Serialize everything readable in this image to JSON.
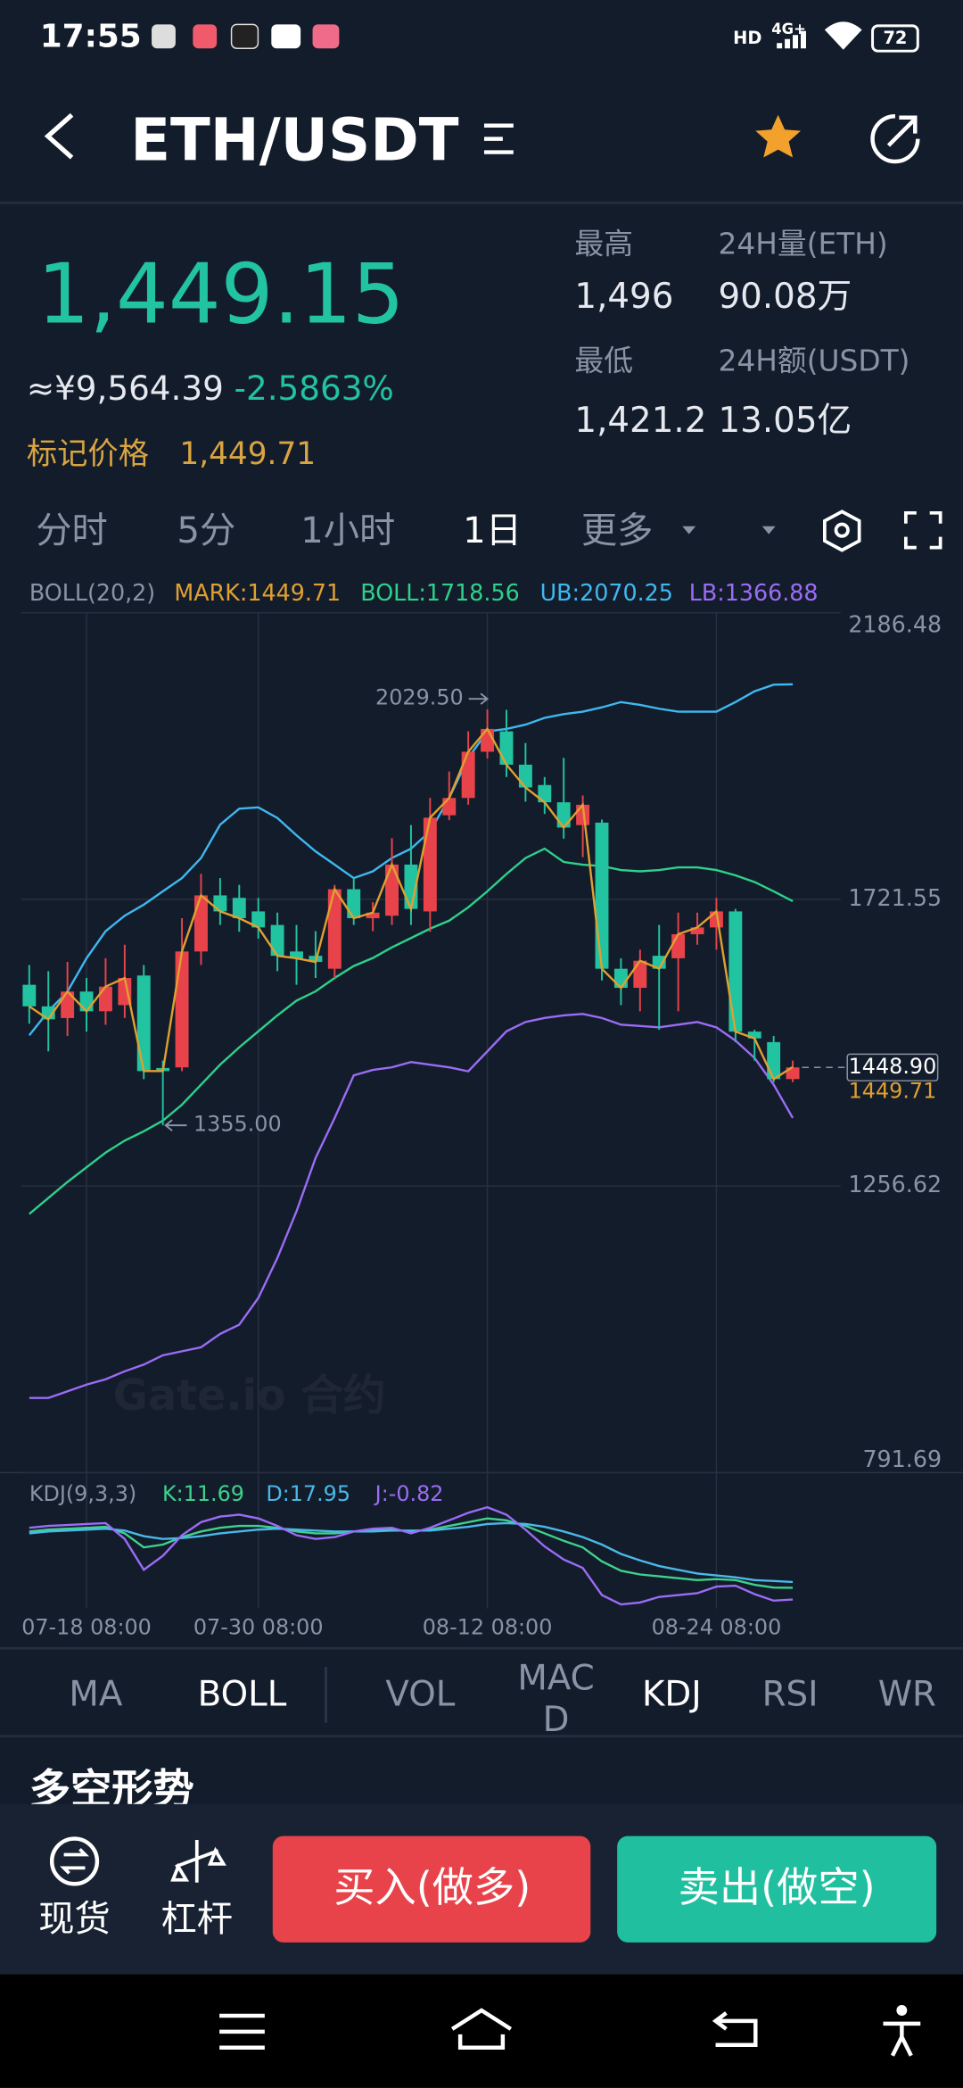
{
  "status_bar": {
    "time": "17:55",
    "hd": "HD",
    "network": "4G+",
    "battery": "72"
  },
  "header": {
    "pair": "ETH/USDT"
  },
  "ticker": {
    "last_price": "1,449.15",
    "cny_price": "≈¥9,564.39",
    "change": "-2.5863%",
    "mark_price_label": "标记价格",
    "mark_price": "1,449.71",
    "stats": [
      {
        "label": "最高",
        "value": "1,496"
      },
      {
        "label": "24H量(ETH)",
        "value": "90.08万"
      },
      {
        "label": "最低",
        "value": "1,421.2"
      },
      {
        "label": "24H额(USDT)",
        "value": "13.05亿"
      }
    ]
  },
  "interval_tabs": [
    "分时",
    "5分",
    "1小时",
    "1日",
    "更多"
  ],
  "chart_data": [
    {
      "type": "candlestick",
      "legend_title": "BOLL(20,2)",
      "categories": [
        null,
        null,
        null,
        "07-18 08:00",
        null,
        null,
        null,
        null,
        null,
        null,
        null,
        null,
        "07-30 08:00",
        null,
        null,
        null,
        null,
        null,
        null,
        null,
        null,
        null,
        null,
        null,
        "08-12 08:00",
        null,
        null,
        null,
        null,
        null,
        null,
        null,
        null,
        null,
        null,
        null,
        "08-24 08:00",
        null,
        null,
        null,
        null
      ],
      "open": [
        1583,
        1548,
        1529,
        1572,
        1540,
        1550,
        1598,
        1448,
        1449,
        1637,
        1728,
        1724,
        1702,
        1680,
        1637,
        1630,
        1609,
        1738,
        1691,
        1695,
        1778,
        1702,
        1858,
        1886,
        1961,
        1994,
        1940,
        1907,
        1879,
        1842,
        1846,
        1609,
        1578,
        1630,
        1626,
        1665,
        1676,
        1702,
        1507,
        1490,
        1430
      ],
      "high": [
        1615,
        1605,
        1620,
        1594,
        1626,
        1648,
        1615,
        1460,
        1691,
        1763,
        1756,
        1745,
        1724,
        1700,
        1680,
        1670,
        1745,
        1756,
        1717,
        1821,
        1842,
        1886,
        1929,
        1994,
        2029.5,
        2029,
        1975,
        1920,
        1951,
        1890,
        1851,
        1626,
        1640,
        1680,
        1700,
        1700,
        1724,
        1706,
        1510,
        1500,
        1460
      ],
      "low": [
        1520,
        1475,
        1500,
        1507,
        1518,
        1529,
        1430,
        1355,
        1443,
        1615,
        1680,
        1669,
        1658,
        1605,
        1583,
        1594,
        1594,
        1680,
        1670,
        1680,
        1680,
        1669,
        1850,
        1875,
        1950,
        1920,
        1880,
        1860,
        1820,
        1790,
        1590,
        1550,
        1540,
        1510,
        1540,
        1648,
        1640,
        1490,
        1460,
        1425,
        1425
      ],
      "close": [
        1548,
        1527,
        1572,
        1540,
        1580,
        1594,
        1443,
        1443,
        1637,
        1728,
        1702,
        1691,
        1676,
        1630,
        1626,
        1620,
        1738,
        1691,
        1700,
        1778,
        1706,
        1854,
        1886,
        1961,
        1998,
        1940,
        1903,
        1879,
        1838,
        1875,
        1609,
        1578,
        1622,
        1609,
        1665,
        1676,
        1702,
        1507,
        1496,
        1430,
        1448.9
      ],
      "up_color": "#e8434a",
      "down_color": "#22c3a0",
      "series": [
        {
          "name": "MARK:1449.71",
          "color": "#e0a030",
          "values": [
            1548,
            1527,
            1572,
            1540,
            1580,
            1594,
            1443,
            1443,
            1637,
            1728,
            1702,
            1691,
            1676,
            1630,
            1626,
            1620,
            1738,
            1691,
            1700,
            1778,
            1706,
            1854,
            1886,
            1961,
            1998,
            1940,
            1903,
            1879,
            1838,
            1875,
            1609,
            1578,
            1622,
            1609,
            1665,
            1676,
            1702,
            1507,
            1496,
            1430,
            1449.71
          ]
        },
        {
          "name": "BOLL:1718.56",
          "color": "#2ed18a",
          "values": [
            1211.2,
            1237.2,
            1263.1,
            1286.9,
            1310.7,
            1330.2,
            1345.3,
            1362.6,
            1388.5,
            1421,
            1453.4,
            1481.5,
            1507.5,
            1533.4,
            1557.2,
            1572.3,
            1594,
            1613.4,
            1626.4,
            1643.7,
            1658.8,
            1674,
            1687,
            1708.6,
            1734.6,
            1762.7,
            1788.6,
            1803.8,
            1782.2,
            1777.8,
            1775.6,
            1769.1,
            1767,
            1769.1,
            1773.4,
            1773.4,
            1769.1,
            1760.5,
            1749.7,
            1734.6,
            1718.56
          ]
        },
        {
          "name": "UB:2070.25",
          "color": "#3fb8f0",
          "values": [
            1501,
            1540,
            1572,
            1626,
            1670,
            1695,
            1713,
            1734.6,
            1756,
            1788.6,
            1842.7,
            1868.6,
            1870.8,
            1853.5,
            1825.4,
            1799.4,
            1777.8,
            1756,
            1767,
            1788.6,
            1803.8,
            1831.9,
            1886,
            1951,
            1994,
            1998,
            2005,
            2016,
            2022,
            2026,
            2033,
            2041.6,
            2037,
            2030.8,
            2026,
            2026,
            2026,
            2041.6,
            2059,
            2069.7,
            2070.25
          ]
        },
        {
          "name": "LB:1366.88",
          "color": "#9b6cf5",
          "values": [
            912.8,
            912.8,
            923.6,
            934.4,
            943.1,
            956,
            966.9,
            982,
            988.5,
            995,
            1016.6,
            1031.7,
            1075,
            1139.9,
            1215.5,
            1302,
            1366.9,
            1436.1,
            1444.8,
            1449.1,
            1457.7,
            1453.4,
            1449.1,
            1442.6,
            1475,
            1507.5,
            1522.6,
            1529.1,
            1533.4,
            1535.6,
            1529.1,
            1518.3,
            1516.1,
            1514,
            1518.3,
            1522.6,
            1514,
            1492.4,
            1464.3,
            1421,
            1366.88
          ]
        }
      ],
      "ylim": [
        791.69,
        2186.48
      ],
      "yticks": [
        791.69,
        1256.62,
        1721.55,
        2186.48
      ],
      "grid": true,
      "high_label": "2029.50",
      "low_label": "1355.00",
      "last_price": {
        "value": 1448.9,
        "label": "1448.90"
      },
      "mark_price": {
        "value": 1449.71,
        "label": "1449.71"
      }
    },
    {
      "type": "line",
      "title": "KDJ(9,3,3)",
      "series": [
        {
          "name": "K:11.69",
          "color": "#3fd18c",
          "values": [
            72,
            74,
            75,
            76,
            77,
            70,
            55,
            58,
            66,
            72,
            76,
            78,
            78,
            76,
            72,
            70,
            70,
            72,
            73,
            74,
            72,
            74,
            78,
            82,
            86,
            84,
            78,
            70,
            62,
            55,
            40,
            30,
            26,
            24,
            22,
            20,
            21,
            20,
            15,
            12,
            11.69
          ]
        },
        {
          "name": "D:17.95",
          "color": "#4ab8e8",
          "values": [
            70,
            72,
            73,
            74,
            75,
            73,
            67,
            64,
            65,
            67,
            70,
            72,
            74,
            75,
            74,
            73,
            72,
            72,
            72,
            73,
            73,
            73,
            75,
            77,
            80,
            81,
            80,
            77,
            72,
            66,
            58,
            48,
            41,
            35,
            31,
            27,
            25,
            23,
            20,
            19,
            17.95
          ]
        },
        {
          "name": "J:-0.82",
          "color": "#9b6cf5",
          "values": [
            76,
            78,
            79,
            80,
            81,
            64,
            31,
            46,
            68,
            82,
            88,
            90,
            86,
            78,
            68,
            64,
            66,
            72,
            75,
            76,
            70,
            76,
            84,
            92,
            98,
            90,
            74,
            56,
            42,
            33,
            4,
            -6,
            -4,
            2,
            4,
            6,
            13,
            14,
            5,
            -2,
            -0.82
          ]
        }
      ]
    }
  ],
  "indicator_tabs": [
    [
      "MA"
    ],
    [
      "BOLL"
    ],
    [
      "VOL"
    ],
    [
      "MAC",
      "D"
    ],
    [
      "KDJ"
    ],
    [
      "RSI"
    ],
    [
      "WR"
    ]
  ],
  "section_title": "多空形势",
  "bottom_bar": {
    "spot": "现货",
    "margin": "杠杆",
    "buy": "买入(做多)",
    "sell": "卖出(做空)"
  },
  "watermark": "Gate.io 合约"
}
